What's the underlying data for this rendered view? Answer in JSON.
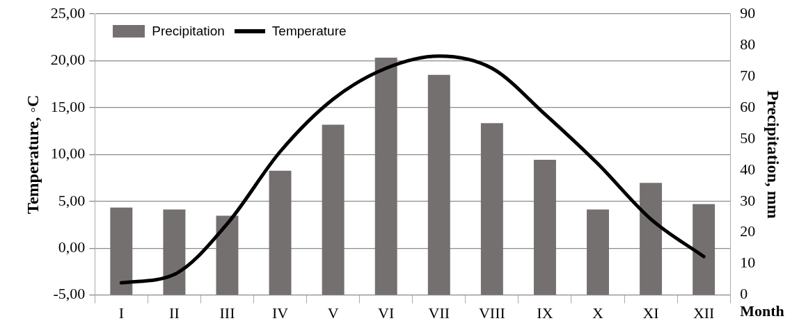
{
  "chart_data": {
    "type": "bar",
    "categories": [
      "I",
      "II",
      "III",
      "IV",
      "V",
      "VI",
      "VII",
      "VIII",
      "IX",
      "X",
      "XI",
      "XII"
    ],
    "series": [
      {
        "name": "Precipitation",
        "axis": "y2",
        "color": "#757070",
        "values": [
          28,
          27.4,
          25.4,
          39.8,
          54.5,
          76,
          70.5,
          55,
          43.3,
          27.4,
          35.9,
          29.1
        ]
      },
      {
        "name": "Temperature",
        "type": "line",
        "axis": "y",
        "color": "#000000",
        "values": [
          -3.7,
          -2.8,
          2.6,
          10.3,
          15.9,
          19.2,
          20.5,
          19.2,
          14.3,
          9,
          3.1,
          -0.9
        ]
      }
    ],
    "xlabel": "Month",
    "ylabel": "Temperature, ◦C",
    "y2label": "Precipitation, mm",
    "ylim": [
      -5,
      25
    ],
    "yticks": [
      {
        "value": -5,
        "label": "-5,00"
      },
      {
        "value": 0,
        "label": "0,00"
      },
      {
        "value": 5,
        "label": "5,00"
      },
      {
        "value": 10,
        "label": "10,00"
      },
      {
        "value": 15,
        "label": "15,00"
      },
      {
        "value": 20,
        "label": "20,00"
      },
      {
        "value": 25,
        "label": "25,00"
      }
    ],
    "y2lim": [
      0,
      90
    ],
    "y2ticks": [
      0,
      10,
      20,
      30,
      40,
      50,
      60,
      70,
      80,
      90
    ],
    "grid": "y",
    "legend": "top left",
    "marker": "none",
    "line_style": "solid"
  }
}
